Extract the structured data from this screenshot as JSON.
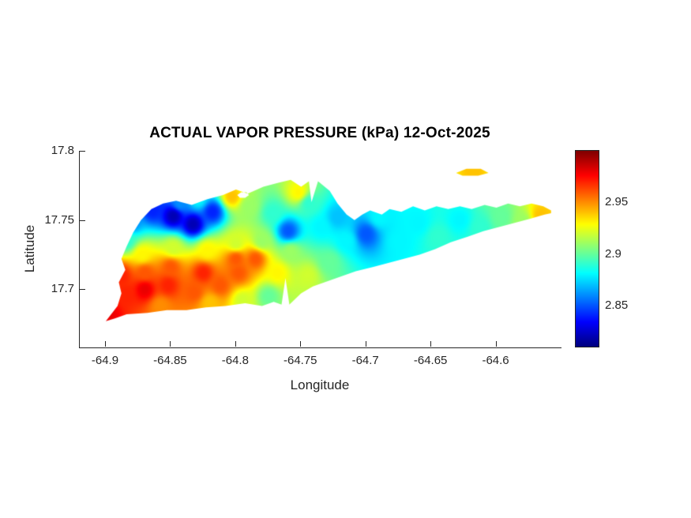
{
  "chart_data": {
    "type": "heatmap",
    "title": "ACTUAL VAPOR PRESSURE (kPa) 12-Oct-2025",
    "xlabel": "Longitude",
    "ylabel": "Latitude",
    "units": "kPa",
    "date": "12-Oct-2025",
    "grid": false,
    "legend": "none",
    "colormap": "jet",
    "xlim": [
      -64.92,
      -64.55
    ],
    "ylim": [
      17.658,
      17.8
    ],
    "x_ticks": [
      -64.9,
      -64.85,
      -64.8,
      -64.75,
      -64.7,
      -64.65,
      -64.6
    ],
    "x_tick_labels": [
      "-64.9",
      "-64.85",
      "-64.8",
      "-64.75",
      "-64.7",
      "-64.65",
      "-64.6"
    ],
    "y_ticks": [
      17.8,
      17.75,
      17.7
    ],
    "y_tick_labels": [
      "17.8",
      "17.75",
      "17.7"
    ],
    "value_range": [
      2.81,
      3.0
    ],
    "colorbar_ticks": [
      2.95,
      2.9,
      2.85
    ],
    "colorbar_tick_labels": [
      "2.95",
      "2.9",
      "2.85"
    ],
    "colors": {
      "background": "#ffffff",
      "axis": "#262626",
      "title": "#000000"
    },
    "boundary": [
      [
        -64.9,
        17.677
      ],
      [
        -64.891,
        17.688
      ],
      [
        -64.888,
        17.697
      ],
      [
        -64.89,
        17.705
      ],
      [
        -64.885,
        17.714
      ],
      [
        -64.888,
        17.722
      ],
      [
        -64.884,
        17.731
      ],
      [
        -64.879,
        17.741
      ],
      [
        -64.873,
        17.75
      ],
      [
        -64.865,
        17.758
      ],
      [
        -64.856,
        17.762
      ],
      [
        -64.846,
        17.764
      ],
      [
        -64.834,
        17.761
      ],
      [
        -64.822,
        17.765
      ],
      [
        -64.81,
        17.768
      ],
      [
        -64.8,
        17.772
      ],
      [
        -64.791,
        17.769
      ],
      [
        -64.779,
        17.774
      ],
      [
        -64.767,
        17.777
      ],
      [
        -64.758,
        17.779
      ],
      [
        -64.75,
        17.774
      ],
      [
        -64.744,
        17.778
      ],
      [
        -64.742,
        17.763
      ],
      [
        -64.737,
        17.778
      ],
      [
        -64.728,
        17.771
      ],
      [
        -64.722,
        17.762
      ],
      [
        -64.715,
        17.754
      ],
      [
        -64.709,
        17.75
      ],
      [
        -64.703,
        17.754
      ],
      [
        -64.697,
        17.757
      ],
      [
        -64.688,
        17.754
      ],
      [
        -64.682,
        17.758
      ],
      [
        -64.673,
        17.756
      ],
      [
        -64.664,
        17.76
      ],
      [
        -64.655,
        17.757
      ],
      [
        -64.646,
        17.76
      ],
      [
        -64.637,
        17.758
      ],
      [
        -64.628,
        17.76
      ],
      [
        -64.619,
        17.758
      ],
      [
        -64.609,
        17.761
      ],
      [
        -64.6,
        17.759
      ],
      [
        -64.591,
        17.762
      ],
      [
        -64.582,
        17.76
      ],
      [
        -64.573,
        17.762
      ],
      [
        -64.564,
        17.76
      ],
      [
        -64.558,
        17.757
      ],
      [
        -64.558,
        17.755
      ],
      [
        -64.563,
        17.754
      ],
      [
        -64.574,
        17.751
      ],
      [
        -64.586,
        17.748
      ],
      [
        -64.598,
        17.745
      ],
      [
        -64.61,
        17.742
      ],
      [
        -64.622,
        17.738
      ],
      [
        -64.635,
        17.734
      ],
      [
        -64.647,
        17.729
      ],
      [
        -64.659,
        17.725
      ],
      [
        -64.671,
        17.722
      ],
      [
        -64.683,
        17.719
      ],
      [
        -64.695,
        17.716
      ],
      [
        -64.708,
        17.713
      ],
      [
        -64.72,
        17.709
      ],
      [
        -64.732,
        17.705
      ],
      [
        -64.741,
        17.702
      ],
      [
        -64.75,
        17.697
      ],
      [
        -64.759,
        17.689
      ],
      [
        -64.762,
        17.708
      ],
      [
        -64.765,
        17.689
      ],
      [
        -64.771,
        17.691
      ],
      [
        -64.78,
        17.688
      ],
      [
        -64.793,
        17.69
      ],
      [
        -64.808,
        17.688
      ],
      [
        -64.823,
        17.687
      ],
      [
        -64.838,
        17.685
      ],
      [
        -64.853,
        17.685
      ],
      [
        -64.868,
        17.683
      ],
      [
        -64.884,
        17.682
      ],
      [
        -64.893,
        17.679
      ]
    ],
    "islets": [
      [
        [
          -64.631,
          17.784
        ],
        [
          -64.623,
          17.787
        ],
        [
          -64.612,
          17.787
        ],
        [
          -64.606,
          17.784
        ],
        [
          -64.614,
          17.782
        ],
        [
          -64.626,
          17.782
        ]
      ]
    ],
    "holes": [
      [
        [
          -64.799,
          17.768
        ],
        [
          -64.796,
          17.77
        ],
        [
          -64.792,
          17.77
        ],
        [
          -64.79,
          17.768
        ],
        [
          -64.793,
          17.766
        ],
        [
          -64.797,
          17.766
        ]
      ]
    ],
    "points": [
      [
        -64.898,
        17.682,
        2.98
      ],
      [
        -64.885,
        17.696,
        2.97
      ],
      [
        -64.888,
        17.71,
        2.97
      ],
      [
        -64.87,
        17.7,
        2.98
      ],
      [
        -64.852,
        17.703,
        2.97
      ],
      [
        -64.832,
        17.698,
        2.96
      ],
      [
        -64.812,
        17.703,
        2.96
      ],
      [
        -64.798,
        17.712,
        2.96
      ],
      [
        -64.785,
        17.722,
        2.96
      ],
      [
        -64.8,
        17.722,
        2.96
      ],
      [
        -64.825,
        17.712,
        2.97
      ],
      [
        -64.85,
        17.716,
        2.96
      ],
      [
        -64.87,
        17.712,
        2.96
      ],
      [
        -64.858,
        17.688,
        2.95
      ],
      [
        -64.82,
        17.69,
        2.94
      ],
      [
        -64.795,
        17.692,
        2.92
      ],
      [
        -64.775,
        17.695,
        2.9
      ],
      [
        -64.872,
        17.725,
        2.93
      ],
      [
        -64.848,
        17.73,
        2.92
      ],
      [
        -64.822,
        17.728,
        2.93
      ],
      [
        -64.8,
        17.733,
        2.92
      ],
      [
        -64.78,
        17.735,
        2.91
      ],
      [
        -64.884,
        17.735,
        2.89
      ],
      [
        -64.88,
        17.748,
        2.86
      ],
      [
        -64.864,
        17.757,
        2.84
      ],
      [
        -64.848,
        17.753,
        2.82
      ],
      [
        -64.833,
        17.747,
        2.82
      ],
      [
        -64.818,
        17.756,
        2.84
      ],
      [
        -64.843,
        17.762,
        2.86
      ],
      [
        -64.829,
        17.765,
        2.88
      ],
      [
        -64.803,
        17.767,
        2.94
      ],
      [
        -64.79,
        17.76,
        2.91
      ],
      [
        -64.772,
        17.755,
        2.89
      ],
      [
        -64.76,
        17.742,
        2.85
      ],
      [
        -64.752,
        17.77,
        2.93
      ],
      [
        -64.744,
        17.762,
        2.89
      ],
      [
        -64.735,
        17.745,
        2.88
      ],
      [
        -64.758,
        17.727,
        2.91
      ],
      [
        -64.768,
        17.712,
        2.93
      ],
      [
        -64.745,
        17.71,
        2.92
      ],
      [
        -64.728,
        17.72,
        2.9
      ],
      [
        -64.715,
        17.735,
        2.88
      ],
      [
        -64.722,
        17.752,
        2.87
      ],
      [
        -64.7,
        17.74,
        2.85
      ],
      [
        -64.69,
        17.752,
        2.88
      ],
      [
        -64.675,
        17.735,
        2.88
      ],
      [
        -64.66,
        17.748,
        2.88
      ],
      [
        -64.645,
        17.738,
        2.89
      ],
      [
        -64.628,
        17.75,
        2.88
      ],
      [
        -64.612,
        17.745,
        2.89
      ],
      [
        -64.596,
        17.752,
        2.9
      ],
      [
        -64.58,
        17.749,
        2.91
      ],
      [
        -64.566,
        17.753,
        2.94
      ],
      [
        -64.618,
        17.785,
        2.94
      ]
    ]
  }
}
